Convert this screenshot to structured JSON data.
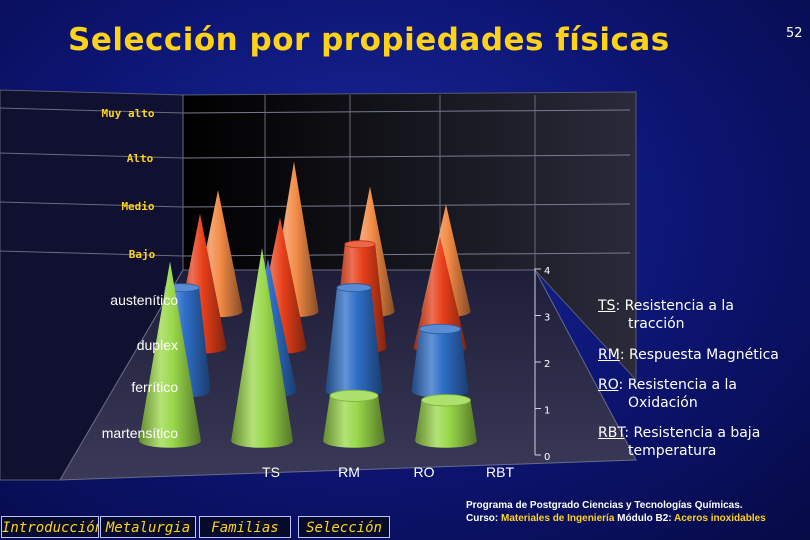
{
  "slide": {
    "title": "Selección por propiedades físicas",
    "page_number": "52"
  },
  "chart_data": {
    "type": "bar3d-cones",
    "categories": [
      "TS",
      "RM",
      "RO",
      "RBT"
    ],
    "series": [
      {
        "name": "austenítico",
        "values": [
          3.4,
          4.2,
          3.5,
          3.0
        ],
        "color": "#f28a45"
      },
      {
        "name": "duplex",
        "values": [
          3.5,
          3.4,
          2.7,
          2.9
        ],
        "color": "#e8401a"
      },
      {
        "name": "ferrítico",
        "values": [
          2.5,
          3.2,
          2.5,
          1.5
        ],
        "color": "#2f6fc8"
      },
      {
        "name": "martensítico",
        "values": [
          4.0,
          4.3,
          1.0,
          0.9
        ],
        "color": "#9ad84a"
      }
    ],
    "z_ticks": [
      "0",
      "1",
      "2",
      "3",
      "4"
    ],
    "ylim": [
      0,
      4.3
    ],
    "level_labels": [
      "Muy alto",
      "Alto",
      "Medio",
      "Bajo"
    ],
    "grid": true
  },
  "legend": [
    {
      "key": "TS",
      "line1": "Resistencia a la",
      "line2": "tracción"
    },
    {
      "key": "RM",
      "line1": "Respuesta Magnética",
      "line2": ""
    },
    {
      "key": "RO",
      "line1": "Resistencia a la",
      "line2": "Oxidación"
    },
    {
      "key": "RBT",
      "line1": "Resistencia a baja",
      "line2": "temperatura"
    }
  ],
  "nav": [
    {
      "label": "Introducción"
    },
    {
      "label": "Metalurgia"
    },
    {
      "label": "Familias"
    },
    {
      "label": "Selección"
    }
  ],
  "footer": {
    "line1": "Programa de Postgrado Ciencias y Tecnologías Químicas.",
    "line2_prefix": "Curso: ",
    "course": "Materiales de Ingeniería",
    "line2_mid": " Módulo B2: ",
    "module": "Aceros inoxidables"
  }
}
